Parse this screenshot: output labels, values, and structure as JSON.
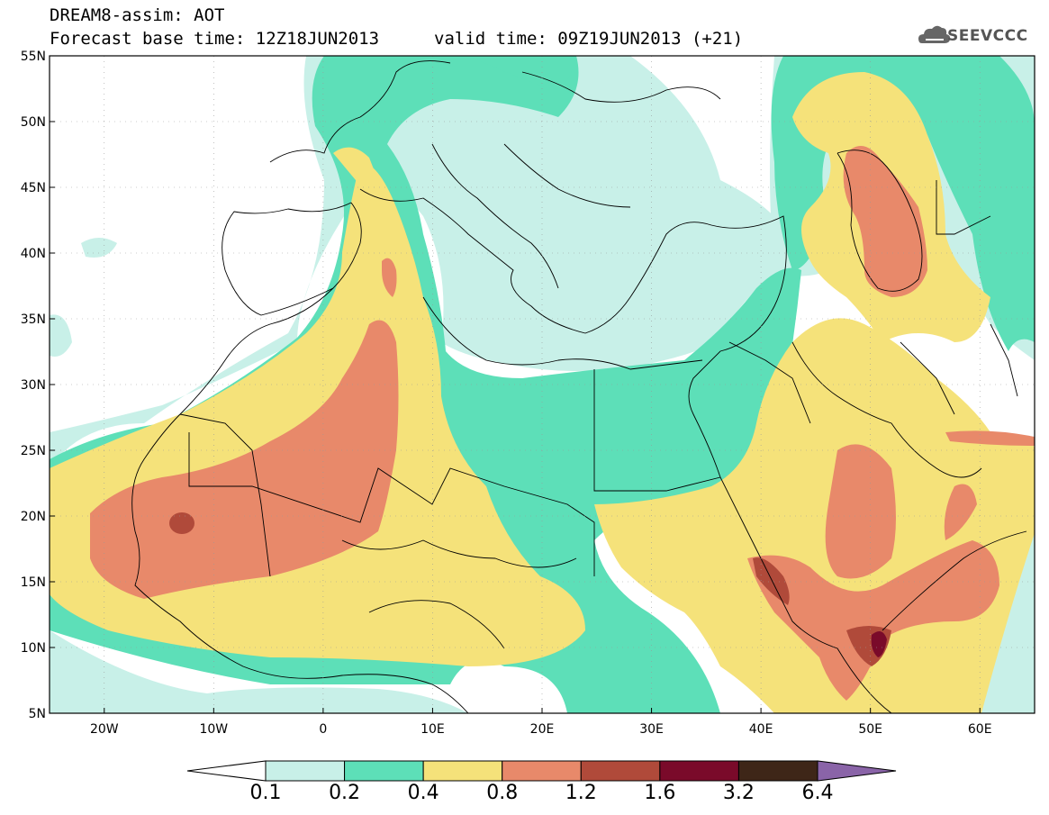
{
  "title": {
    "line1": "DREAM8-assim: AOT",
    "line2": "Forecast base time: 12Z18JUN2013",
    "valid": "valid time: 09Z19JUN2013 (+21)"
  },
  "logo": {
    "text": "SEEVCCC",
    "icon": "cloud-icon"
  },
  "axes": {
    "lat_labels": [
      "55N",
      "50N",
      "45N",
      "40N",
      "35N",
      "30N",
      "25N",
      "20N",
      "15N",
      "10N",
      "5N"
    ],
    "lat_values": [
      55,
      50,
      45,
      40,
      35,
      30,
      25,
      20,
      15,
      10,
      5
    ],
    "lon_labels": [
      "20W",
      "10W",
      "0",
      "10E",
      "20E",
      "30E",
      "40E",
      "50E",
      "60E"
    ],
    "lon_values": [
      -20,
      -10,
      0,
      10,
      20,
      30,
      40,
      50,
      60
    ],
    "lon_range": [
      -25,
      65
    ],
    "lat_range": [
      5,
      55
    ]
  },
  "colorbar": {
    "labels": [
      "0.1",
      "0.2",
      "0.4",
      "0.8",
      "1.2",
      "1.6",
      "3.2",
      "6.4"
    ],
    "colors": [
      "#ffffff",
      "#c8f0e8",
      "#5ddfb8",
      "#f5e27a",
      "#e8896a",
      "#b04a3a",
      "#7a0a2a",
      "#3e2618",
      "#8a64a8"
    ]
  },
  "levels": {
    "c02": "#c8f0e8",
    "c04": "#5ddfb8",
    "c08": "#f5e27a",
    "c12": "#e8896a",
    "c16": "#b04a3a",
    "c32": "#7a0a2a"
  }
}
